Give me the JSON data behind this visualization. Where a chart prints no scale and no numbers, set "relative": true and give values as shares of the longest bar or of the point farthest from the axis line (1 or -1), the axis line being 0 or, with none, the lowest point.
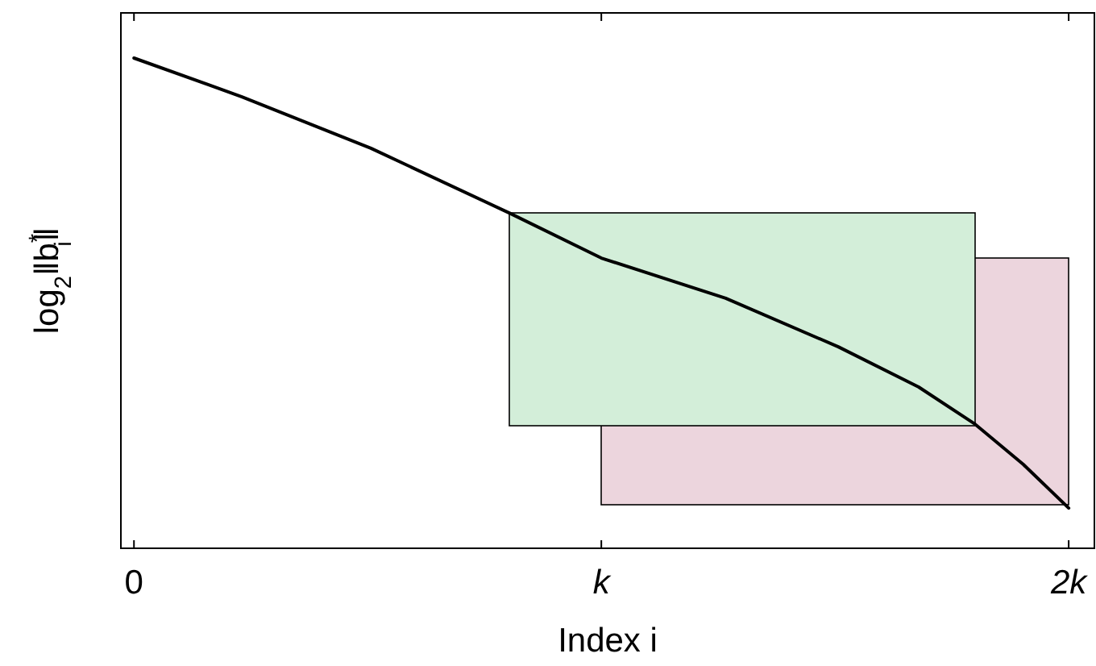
{
  "chart_data": {
    "type": "line",
    "relative": true,
    "xlabel": "Index i",
    "ylabel": "log$_{2}$‖b$^{*}$$_{i}$‖",
    "x": [
      0,
      0.231,
      0.507,
      0.803,
      1,
      1.266,
      1.507,
      1.679,
      1.8,
      1.903,
      2
    ],
    "xlim": [
      -0.028,
      2.055
    ],
    "xticks": [
      {
        "value": 0,
        "label": "0"
      },
      {
        "value": 1,
        "label": "k"
      },
      {
        "value": 2,
        "label": "2k"
      }
    ],
    "series": [
      {
        "color": "#000000",
        "values": [
          1,
          0.921,
          0.816,
          0.684,
          0.592,
          0.51,
          0.411,
          0.329,
          0.253,
          0.171,
          0.082
        ]
      }
    ],
    "grid": false,
    "marker": "none",
    "line_style": "solid"
  }
}
